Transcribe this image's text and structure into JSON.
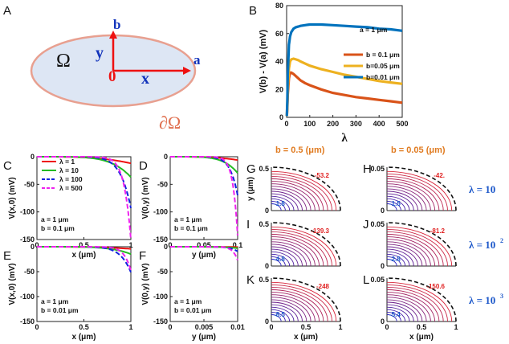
{
  "panel_labels": {
    "A": "A",
    "B": "B",
    "C": "C",
    "D": "D",
    "E": "E",
    "F": "F",
    "G": "G",
    "H": "H",
    "I": "I",
    "J": "J",
    "K": "K",
    "L": "L"
  },
  "diagram": {
    "omega": "Ω",
    "boundary": "∂Ω",
    "origin": "0",
    "x": "x",
    "y": "y",
    "a": "a",
    "b": "b",
    "colors": {
      "fill": "#dde6f4",
      "edge": "#e8a090",
      "arrow": "#ee1111",
      "blue": "#1133bb",
      "origin": "#ee1111",
      "boundary": "#e07050"
    }
  },
  "annotations": {
    "b_annot": "a = 1 μm",
    "c_annot": [
      "a = 1 μm",
      "b = 0.1 μm"
    ],
    "d_annot": [
      "a = 1 μm",
      "b = 0.1 μm"
    ],
    "e_annot": [
      "a = 1 μm",
      "b = 0.01 μm"
    ],
    "f_annot": [
      "a = 1 μm",
      "b = 0.01 μm"
    ],
    "col_g": "b = 0.5 (μm)",
    "col_h": "b = 0.05 (μm)",
    "row_lambda": [
      "λ = 10",
      "λ = 10",
      "λ = 10"
    ],
    "row_exp": [
      "",
      "2",
      "3"
    ],
    "contour_max": [
      "-53.2",
      "-42.",
      "-139.3",
      "-81.2",
      "-248",
      "-150.6"
    ],
    "contour_min": [
      "-1.8",
      "-1.5",
      "-4.8",
      "-2.8",
      "-8.5",
      "-5.4"
    ]
  },
  "chart_data": [
    {
      "panel": "B",
      "type": "line",
      "title": "",
      "xlabel": "λ",
      "ylabel": "V(b) - V(a)  (mV)",
      "xlim": [
        0,
        500
      ],
      "ylim": [
        0,
        80
      ],
      "xticks": [
        "0",
        "100",
        "200",
        "300",
        "400",
        "500"
      ],
      "yticks": [
        "0",
        "20",
        "40",
        "60",
        "80"
      ],
      "x": [
        1,
        3,
        5,
        10,
        15,
        20,
        30,
        40,
        50,
        60,
        80,
        100,
        150,
        200,
        250,
        300,
        350,
        400,
        450,
        500
      ],
      "series": [
        {
          "name": "b = 0.1 μm",
          "color": "#d95319",
          "values": [
            1,
            7,
            16,
            28,
            32,
            32,
            31,
            29.5,
            28,
            26.5,
            24.5,
            23,
            20,
            17.5,
            16,
            14.5,
            13.5,
            12.5,
            11.5,
            10.5
          ]
        },
        {
          "name": "b=0.05 μm",
          "color": "#edb120",
          "values": [
            1,
            9,
            20,
            35,
            40,
            41.5,
            42,
            41.5,
            41,
            40,
            38.5,
            37,
            34.5,
            32.5,
            30.5,
            29,
            27.5,
            26,
            25,
            24
          ]
        },
        {
          "name": "b=0.01 μm",
          "color": "#0072bd",
          "values": [
            1,
            12,
            30,
            52,
            58,
            61,
            63.5,
            64.5,
            65,
            65.5,
            66,
            66.5,
            66.5,
            66,
            65.5,
            65,
            64.5,
            63.5,
            63,
            62
          ]
        }
      ]
    },
    {
      "panel": "C",
      "type": "line",
      "xlabel": "x (μm)",
      "ylabel": "V(x,0)  (mV)",
      "xlim": [
        0,
        1
      ],
      "ylim": [
        -150,
        0
      ],
      "xticks": [
        "0",
        "0.5",
        "1"
      ],
      "yticks": [
        "0",
        "-50",
        "-100",
        "-150"
      ],
      "series": [
        {
          "name": "λ = 1",
          "color": "#ee1111",
          "dash": "",
          "fn": "1"
        },
        {
          "name": "λ = 10",
          "color": "#22bb22",
          "dash": "",
          "fn": "10"
        },
        {
          "name": "λ = 100",
          "color": "#1122dd",
          "dash": "6,3",
          "fn": "100"
        },
        {
          "name": "λ = 500",
          "color": "#ee22ee",
          "dash": "6,3",
          "fn": "500"
        }
      ]
    },
    {
      "panel": "D",
      "type": "line",
      "xlabel": "y (μm)",
      "ylabel": "V(0,y)  (mV)",
      "xlim": [
        0,
        0.1
      ],
      "ylim": [
        -150,
        0
      ],
      "xticks": [
        "0",
        "0.05",
        "0.1"
      ],
      "yticks": [
        "0",
        "-50",
        "-100",
        "-150"
      ]
    },
    {
      "panel": "E",
      "type": "line",
      "xlabel": "x (μm)",
      "ylabel": "V(x,0)  (mV)",
      "xlim": [
        0,
        1
      ],
      "ylim": [
        -150,
        0
      ],
      "xticks": [
        "0",
        "0.5",
        "1"
      ],
      "yticks": [
        "0",
        "-50",
        "-100",
        "-150"
      ]
    },
    {
      "panel": "F",
      "type": "line",
      "xlabel": "y (μm)",
      "ylabel": "V(0,y)  (mV)",
      "xlim": [
        0,
        0.01
      ],
      "ylim": [
        -150,
        0
      ],
      "xticks": [
        "0",
        "0.005",
        "0.01"
      ],
      "yticks": [
        "0",
        "-50",
        "-100",
        "-150"
      ]
    },
    {
      "panel": "G-L",
      "type": "heatmap",
      "xlabel": "x (μm)",
      "ylabel": "y (μm)",
      "xticks": [
        "0",
        "0.5",
        "1"
      ],
      "yticks_left": [
        "0",
        "0.5"
      ],
      "yticks_right": [
        "0",
        "0.05"
      ]
    }
  ]
}
